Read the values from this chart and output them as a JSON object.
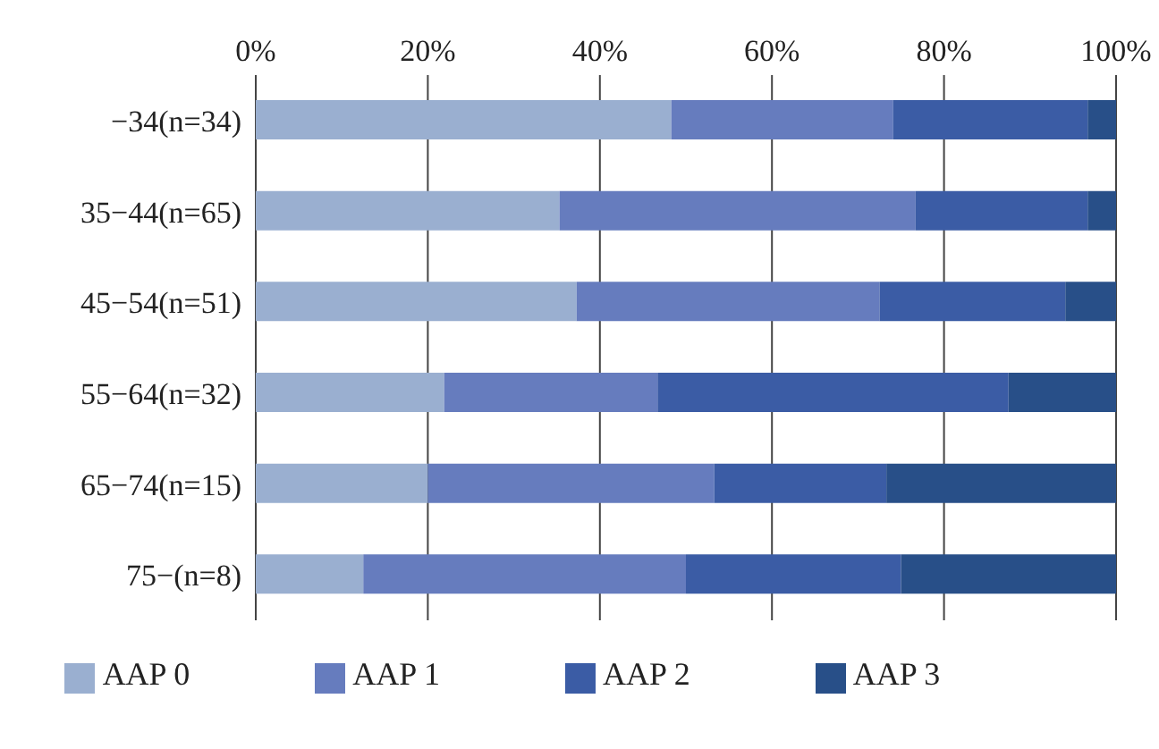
{
  "chart_data": {
    "type": "bar",
    "orientation": "horizontal",
    "stacked": true,
    "categories": [
      "−34(n=34)",
      "35−44(n=65)",
      "45−54(n=51)",
      "55−64(n=32)",
      "65−74(n=15)",
      "75−(n=8)"
    ],
    "series": [
      {
        "name": "AAP 0",
        "color": "#9aafd0",
        "values": [
          48.3,
          35.3,
          37.3,
          21.9,
          20.0,
          12.5
        ]
      },
      {
        "name": "AAP 1",
        "color": "#667cbe",
        "values": [
          25.8,
          41.4,
          35.2,
          24.8,
          33.3,
          37.5
        ]
      },
      {
        "name": "AAP 2",
        "color": "#3b5ca5",
        "values": [
          22.6,
          20.0,
          21.6,
          40.8,
          20.0,
          25.0
        ]
      },
      {
        "name": "AAP 3",
        "color": "#284f88",
        "values": [
          3.3,
          3.3,
          5.9,
          12.5,
          26.7,
          25.0
        ]
      }
    ],
    "xlim": [
      0,
      100
    ],
    "xticks": [
      {
        "value": 0,
        "label": "0%"
      },
      {
        "value": 20,
        "label": "20%"
      },
      {
        "value": 40,
        "label": "40%"
      },
      {
        "value": 60,
        "label": "60%"
      },
      {
        "value": 80,
        "label": "80%"
      },
      {
        "value": 100,
        "label": "100%"
      }
    ],
    "grid": "x",
    "legend": "bottom"
  }
}
